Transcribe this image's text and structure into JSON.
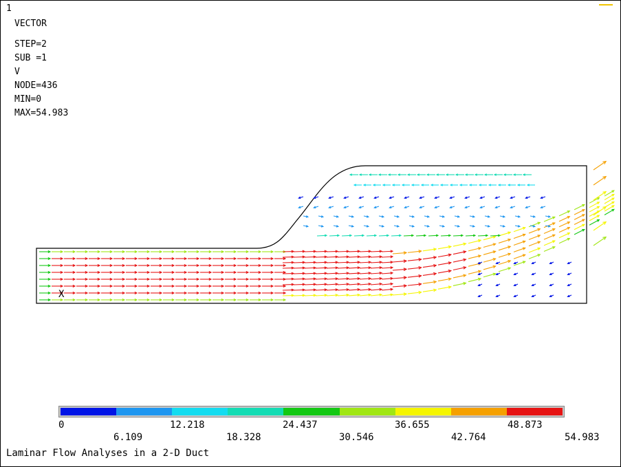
{
  "window_number": "1",
  "header": {
    "type_label": "VECTOR",
    "step": "STEP=2",
    "sub": "SUB =1",
    "variable": "V",
    "node": "NODE=436",
    "min": "MIN=0",
    "max": "MAX=54.983"
  },
  "origin_marker": "X",
  "legend": {
    "colors": [
      "#0014e6",
      "#1e96f0",
      "#14dcf0",
      "#14dcb4",
      "#14c814",
      "#a0e614",
      "#f5f500",
      "#f5a000",
      "#e61414"
    ],
    "labels_top": [
      "0",
      "12.218",
      "24.437",
      "36.655",
      "48.873"
    ],
    "labels_bottom": [
      "6.109",
      "18.328",
      "30.546",
      "42.764",
      "54.983"
    ]
  },
  "caption": "Laminar Flow Analyses in a 2-D Duct",
  "chart_data": {
    "type": "vector-field",
    "variable": "V",
    "min": 0,
    "max": 54.983,
    "contour_levels": [
      0,
      6.109,
      12.218,
      18.328,
      24.437,
      30.546,
      36.655,
      42.764,
      48.873,
      54.983
    ]
  }
}
